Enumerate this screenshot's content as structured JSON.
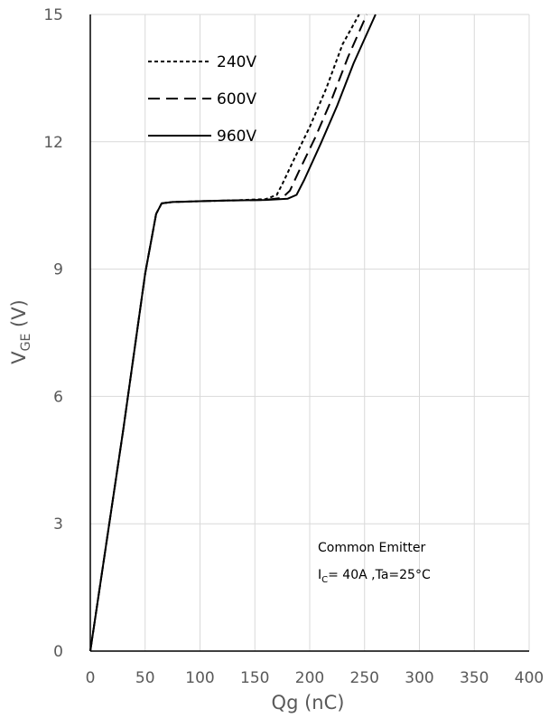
{
  "chart_data": {
    "type": "line",
    "title": "",
    "xlabel": "Qg (nC)",
    "ylabel_main": "V",
    "ylabel_sub": "GE",
    "ylabel_unit": " (V)",
    "xlim": [
      0,
      400
    ],
    "ylim": [
      0,
      15
    ],
    "x_ticks": [
      "0",
      "50",
      "100",
      "150",
      "200",
      "250",
      "300",
      "350",
      "400"
    ],
    "y_ticks": [
      "0",
      "3",
      "6",
      "9",
      "12",
      "15"
    ],
    "grid": true,
    "legend_position": "top-left",
    "series": [
      {
        "name": "240V",
        "dash": "short-dash",
        "color": "#000000",
        "x": [
          0,
          30,
          50,
          60,
          65,
          75,
          100,
          130,
          160,
          170,
          175,
          185,
          200,
          215,
          230,
          245
        ],
        "y": [
          0,
          5.2,
          8.9,
          10.3,
          10.55,
          10.58,
          10.6,
          10.62,
          10.65,
          10.75,
          11.0,
          11.55,
          12.35,
          13.25,
          14.3,
          15.0
        ]
      },
      {
        "name": "600V",
        "dash": "long-dash",
        "color": "#000000",
        "x": [
          0,
          30,
          50,
          60,
          65,
          75,
          100,
          130,
          160,
          175,
          182,
          190,
          205,
          220,
          235,
          252
        ],
        "y": [
          0,
          5.2,
          8.9,
          10.3,
          10.55,
          10.58,
          10.6,
          10.62,
          10.63,
          10.68,
          10.85,
          11.3,
          12.1,
          13.0,
          14.0,
          15.0
        ]
      },
      {
        "name": "960V",
        "dash": "solid",
        "color": "#000000",
        "x": [
          0,
          30,
          50,
          60,
          65,
          75,
          100,
          130,
          160,
          180,
          188,
          195,
          210,
          225,
          240,
          260
        ],
        "y": [
          0,
          5.2,
          8.9,
          10.3,
          10.55,
          10.58,
          10.6,
          10.62,
          10.63,
          10.66,
          10.75,
          11.1,
          11.95,
          12.85,
          13.85,
          15.0
        ]
      }
    ],
    "annotations": {
      "line1": "Common Emitter",
      "line2_main": "I",
      "line2_sub": "C",
      "line2_rest": "= 40A ,Ta=25°C"
    }
  }
}
